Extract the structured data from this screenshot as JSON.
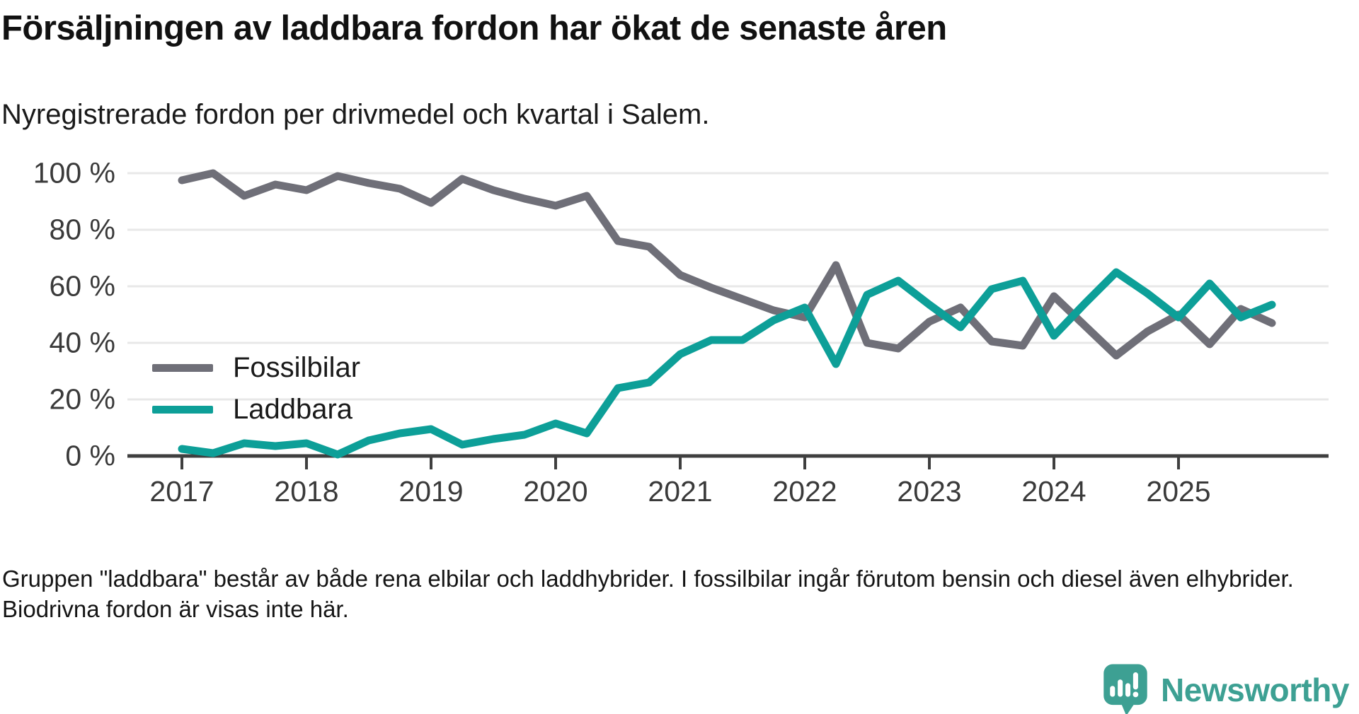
{
  "header": {
    "title": "Försäljningen av laddbara fordon har ökat de senaste åren",
    "subtitle": "Nyregistrerade fordon per drivmedel och kvartal i Salem."
  },
  "chart_data": {
    "type": "line",
    "title": "Nyregistrerade fordon per drivmedel och kvartal i Salem",
    "x_unit": "quarter",
    "categories": [
      "2017 Q1",
      "2017 Q2",
      "2017 Q3",
      "2017 Q4",
      "2018 Q1",
      "2018 Q2",
      "2018 Q3",
      "2018 Q4",
      "2019 Q1",
      "2019 Q2",
      "2019 Q3",
      "2019 Q4",
      "2020 Q1",
      "2020 Q2",
      "2020 Q3",
      "2020 Q4",
      "2021 Q1",
      "2021 Q2",
      "2021 Q3",
      "2021 Q4",
      "2022 Q1",
      "2022 Q2",
      "2022 Q3",
      "2022 Q4",
      "2023 Q1",
      "2023 Q2",
      "2023 Q3",
      "2023 Q4",
      "2024 Q1",
      "2024 Q2",
      "2024 Q3",
      "2024 Q4",
      "2025 Q1",
      "2025 Q2",
      "2025 Q3",
      "2025 Q4"
    ],
    "series": [
      {
        "name": "Fossilbilar",
        "color": "#6f6f78",
        "values": [
          97.5,
          100,
          92,
          96,
          94,
          99,
          96.5,
          94.5,
          89.5,
          98,
          94,
          91,
          88.5,
          92,
          76,
          74,
          64,
          59.5,
          55.5,
          51.5,
          49,
          67.5,
          40,
          38,
          47.5,
          52.5,
          40.5,
          39,
          56.5,
          46,
          35.5,
          44,
          50,
          39.5,
          52,
          47
        ]
      },
      {
        "name": "Laddbara",
        "color": "#0d9f98",
        "values": [
          2.5,
          1,
          4.5,
          3.5,
          4.5,
          0.5,
          5.5,
          8,
          9.5,
          4,
          6,
          7.5,
          11.5,
          8,
          24,
          26,
          36,
          41,
          41,
          48,
          52.5,
          32.5,
          57,
          62,
          53.5,
          45.5,
          59,
          62,
          42.5,
          54,
          65,
          57.5,
          49,
          61,
          49,
          53.5
        ]
      }
    ],
    "yticks": {
      "values": [
        0,
        20,
        40,
        60,
        80,
        100
      ],
      "labels": [
        "0 %",
        "20 %",
        "40 %",
        "60 %",
        "80 %",
        "100 %"
      ]
    },
    "xticks": {
      "years": [
        2017,
        2018,
        2019,
        2020,
        2021,
        2022,
        2023,
        2024,
        2025
      ],
      "labels": [
        "2017",
        "2018",
        "2019",
        "2020",
        "2021",
        "2022",
        "2023",
        "2024",
        "2025"
      ]
    },
    "ylim": [
      0,
      100
    ],
    "grid": "horizontal",
    "legend_position": "inside-left-bottom",
    "colors": {
      "grid": "#e8e8e8",
      "axis": "#3f3f3f",
      "tick_label": "#3a3a3a"
    }
  },
  "legend": {
    "items": [
      {
        "label": "Fossilbilar",
        "color": "#6f6f78"
      },
      {
        "label": "Laddbara",
        "color": "#0d9f98"
      }
    ]
  },
  "footer": {
    "note": "Gruppen \"laddbara\" består av både rena elbilar och laddhybrider. I fossilbilar ingår förutom bensin och diesel även elhybrider. Biodrivna fordon är visas inte här."
  },
  "logo": {
    "brand": "Newsworthy",
    "color": "#3da093",
    "icon": "newsworthy-speech-bubble-chart-icon"
  }
}
